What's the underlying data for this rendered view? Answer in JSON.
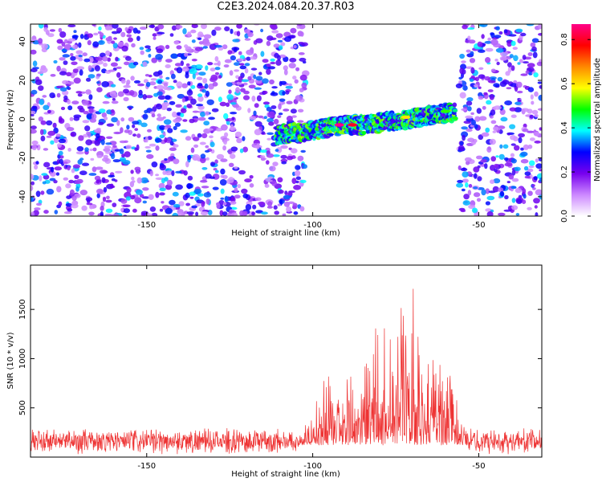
{
  "title": "C2E3.2024.084.20.37.R03",
  "chart_data": [
    {
      "type": "heatmap",
      "xlabel": "Height of straight line (km)",
      "ylabel": "Frequency (Hz)",
      "xlim": [
        -185,
        -31
      ],
      "ylim": [
        -50,
        49
      ],
      "xticks": [
        -150,
        -100,
        -50
      ],
      "yticks": [
        -40,
        -20,
        0,
        20,
        40
      ],
      "grid": false,
      "colorbar": {
        "label": "Normalized spectral amplitude",
        "range": [
          0,
          0.87
        ],
        "ticks": [
          0,
          0.2,
          0.4,
          0.6,
          0.8
        ],
        "colors": [
          "#ffffff",
          "#cc88ff",
          "#7700ee",
          "#0000ff",
          "#00ffff",
          "#00ff00",
          "#ffff00",
          "#ff8800",
          "#ff0000",
          "#ff0088"
        ]
      },
      "noise_regions": [
        [
          -185,
          -102
        ],
        [
          -56,
          -31
        ]
      ],
      "echo_trace": [
        {
          "x": -111,
          "y": -8
        },
        {
          "x": -105,
          "y": -7
        },
        {
          "x": -100,
          "y": -6
        },
        {
          "x": -95,
          "y": -4
        },
        {
          "x": -90,
          "y": -3
        },
        {
          "x": -85,
          "y": -3
        },
        {
          "x": -80,
          "y": -2
        },
        {
          "x": -75,
          "y": -1
        },
        {
          "x": -70,
          "y": 0
        },
        {
          "x": -65,
          "y": 2
        },
        {
          "x": -60,
          "y": 3
        },
        {
          "x": -57,
          "y": 4
        }
      ],
      "echo_peaks": [
        {
          "x": -92,
          "y": -3,
          "amp": 0.87
        },
        {
          "x": -88,
          "y": -3,
          "amp": 0.8
        },
        {
          "x": -72,
          "y": 1,
          "amp": 0.6
        },
        {
          "x": -60,
          "y": 4,
          "amp": 0.5
        }
      ]
    },
    {
      "type": "line",
      "xlabel": "Height of straight line (km)",
      "ylabel": "SNR (10 * v/v)",
      "xlim": [
        -185,
        -31
      ],
      "ylim": [
        0,
        1950
      ],
      "xticks": [
        -150,
        -100,
        -50
      ],
      "yticks": [
        500,
        1000,
        1500
      ],
      "grid": false,
      "series_color": "#ee3333",
      "noise_floor": 160,
      "noise_amp": 140,
      "envelope": [
        {
          "x": -185,
          "y": 200
        },
        {
          "x": -105,
          "y": 200
        },
        {
          "x": -98,
          "y": 650
        },
        {
          "x": -95,
          "y": 1000
        },
        {
          "x": -92,
          "y": 900
        },
        {
          "x": -88,
          "y": 1000
        },
        {
          "x": -84,
          "y": 1300
        },
        {
          "x": -81,
          "y": 1700
        },
        {
          "x": -77,
          "y": 1300
        },
        {
          "x": -73,
          "y": 1700
        },
        {
          "x": -70,
          "y": 1900
        },
        {
          "x": -66,
          "y": 1650
        },
        {
          "x": -62,
          "y": 1500
        },
        {
          "x": -58,
          "y": 1000
        },
        {
          "x": -56,
          "y": 600
        },
        {
          "x": -53,
          "y": 200
        },
        {
          "x": -31,
          "y": 200
        }
      ]
    }
  ]
}
